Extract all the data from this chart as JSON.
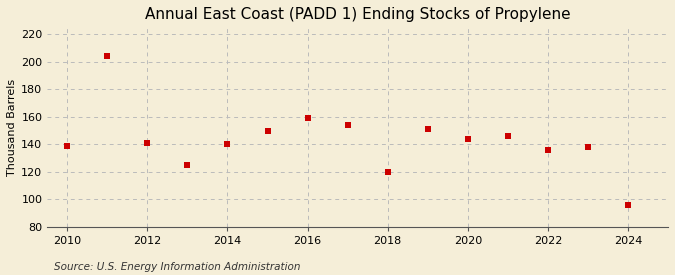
{
  "title": "Annual East Coast (PADD 1) Ending Stocks of Propylene",
  "ylabel": "Thousand Barrels",
  "source": "Source: U.S. Energy Information Administration",
  "years": [
    2010,
    2011,
    2012,
    2013,
    2014,
    2015,
    2016,
    2017,
    2018,
    2019,
    2020,
    2021,
    2022,
    2023,
    2024
  ],
  "values": [
    139,
    204,
    141,
    125,
    140,
    150,
    159,
    154,
    120,
    151,
    144,
    146,
    136,
    138,
    96
  ],
  "marker_color": "#cc0000",
  "marker": "s",
  "marker_size": 4,
  "ylim": [
    80,
    225
  ],
  "yticks": [
    80,
    100,
    120,
    140,
    160,
    180,
    200,
    220
  ],
  "xlim": [
    2009.5,
    2025.0
  ],
  "xticks": [
    2010,
    2012,
    2014,
    2016,
    2018,
    2020,
    2022,
    2024
  ],
  "background_color": "#f5eed8",
  "grid_color": "#bbbbbb",
  "title_fontsize": 11,
  "label_fontsize": 8,
  "tick_fontsize": 8,
  "source_fontsize": 7.5
}
